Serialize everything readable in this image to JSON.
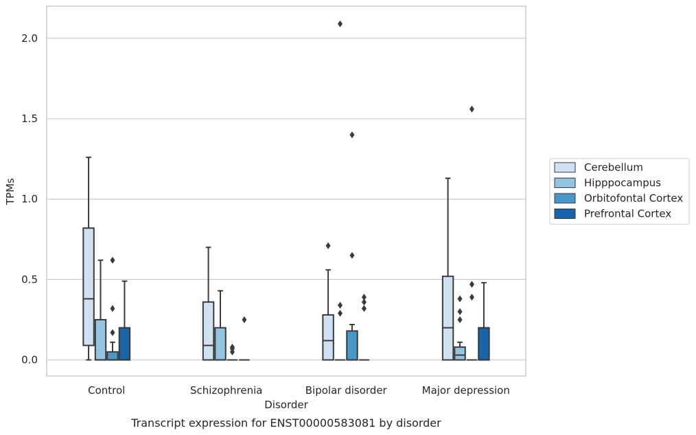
{
  "chart_data": {
    "type": "box",
    "title": "Transcript expression for ENST00000583081 by disorder",
    "xlabel": "Disorder",
    "ylabel": "TPMs",
    "categories": [
      "Control",
      "Schizophrenia",
      "Bipolar disorder",
      "Major depression"
    ],
    "ylim": [
      -0.1,
      2.2
    ],
    "yticks": [
      "0.0",
      "0.5",
      "1.0",
      "1.5",
      "2.0"
    ],
    "grid": true,
    "legend_position": "right",
    "series": [
      {
        "name": "Cerebellum",
        "color": "#d0e1f2",
        "boxes": [
          {
            "whisker_low": 0.0,
            "q1": 0.09,
            "median": 0.38,
            "q3": 0.82,
            "whisker_high": 1.26,
            "outliers": []
          },
          {
            "whisker_low": 0.0,
            "q1": 0.0,
            "median": 0.09,
            "q3": 0.36,
            "whisker_high": 0.7,
            "outliers": []
          },
          {
            "whisker_low": 0.0,
            "q1": 0.0,
            "median": 0.12,
            "q3": 0.28,
            "whisker_high": 0.56,
            "outliers": [
              0.71
            ]
          },
          {
            "whisker_low": 0.0,
            "q1": 0.0,
            "median": 0.2,
            "q3": 0.52,
            "whisker_high": 1.13,
            "outliers": []
          }
        ]
      },
      {
        "name": "Hipppocampus",
        "color": "#94c4df",
        "boxes": [
          {
            "whisker_low": 0.0,
            "q1": 0.0,
            "median": 0.0,
            "q3": 0.25,
            "whisker_high": 0.62,
            "outliers": []
          },
          {
            "whisker_low": 0.0,
            "q1": 0.0,
            "median": 0.0,
            "q3": 0.2,
            "whisker_high": 0.43,
            "outliers": []
          },
          {
            "whisker_low": 0.0,
            "q1": 0.0,
            "median": 0.0,
            "q3": 0.0,
            "whisker_high": 0.0,
            "outliers": [
              0.29,
              0.34,
              2.09
            ]
          },
          {
            "whisker_low": 0.0,
            "q1": 0.0,
            "median": 0.03,
            "q3": 0.08,
            "whisker_high": 0.11,
            "outliers": [
              0.25,
              0.3,
              0.38
            ]
          }
        ]
      },
      {
        "name": "Orbitofontal Cortex",
        "color": "#4a98c9",
        "boxes": [
          {
            "whisker_low": 0.0,
            "q1": 0.0,
            "median": 0.0,
            "q3": 0.05,
            "whisker_high": 0.11,
            "outliers": [
              0.17,
              0.32,
              0.62
            ]
          },
          {
            "whisker_low": 0.0,
            "q1": 0.0,
            "median": 0.0,
            "q3": 0.0,
            "whisker_high": 0.0,
            "outliers": [
              0.05,
              0.07,
              0.08
            ]
          },
          {
            "whisker_low": 0.0,
            "q1": 0.0,
            "median": 0.0,
            "q3": 0.18,
            "whisker_high": 0.22,
            "outliers": [
              0.65,
              1.4
            ]
          },
          {
            "whisker_low": 0.0,
            "q1": 0.0,
            "median": 0.0,
            "q3": 0.0,
            "whisker_high": 0.0,
            "outliers": [
              0.39,
              0.47,
              1.56
            ]
          }
        ]
      },
      {
        "name": "Prefrontal Cortex",
        "color": "#1764ab",
        "boxes": [
          {
            "whisker_low": 0.0,
            "q1": 0.0,
            "median": 0.0,
            "q3": 0.2,
            "whisker_high": 0.49,
            "outliers": []
          },
          {
            "whisker_low": 0.0,
            "q1": 0.0,
            "median": 0.0,
            "q3": 0.0,
            "whisker_high": 0.0,
            "outliers": [
              0.25
            ]
          },
          {
            "whisker_low": 0.0,
            "q1": 0.0,
            "median": 0.0,
            "q3": 0.0,
            "whisker_high": 0.0,
            "outliers": [
              0.32,
              0.36,
              0.39
            ]
          },
          {
            "whisker_low": 0.0,
            "q1": 0.0,
            "median": 0.0,
            "q3": 0.2,
            "whisker_high": 0.48,
            "outliers": []
          }
        ]
      }
    ]
  }
}
